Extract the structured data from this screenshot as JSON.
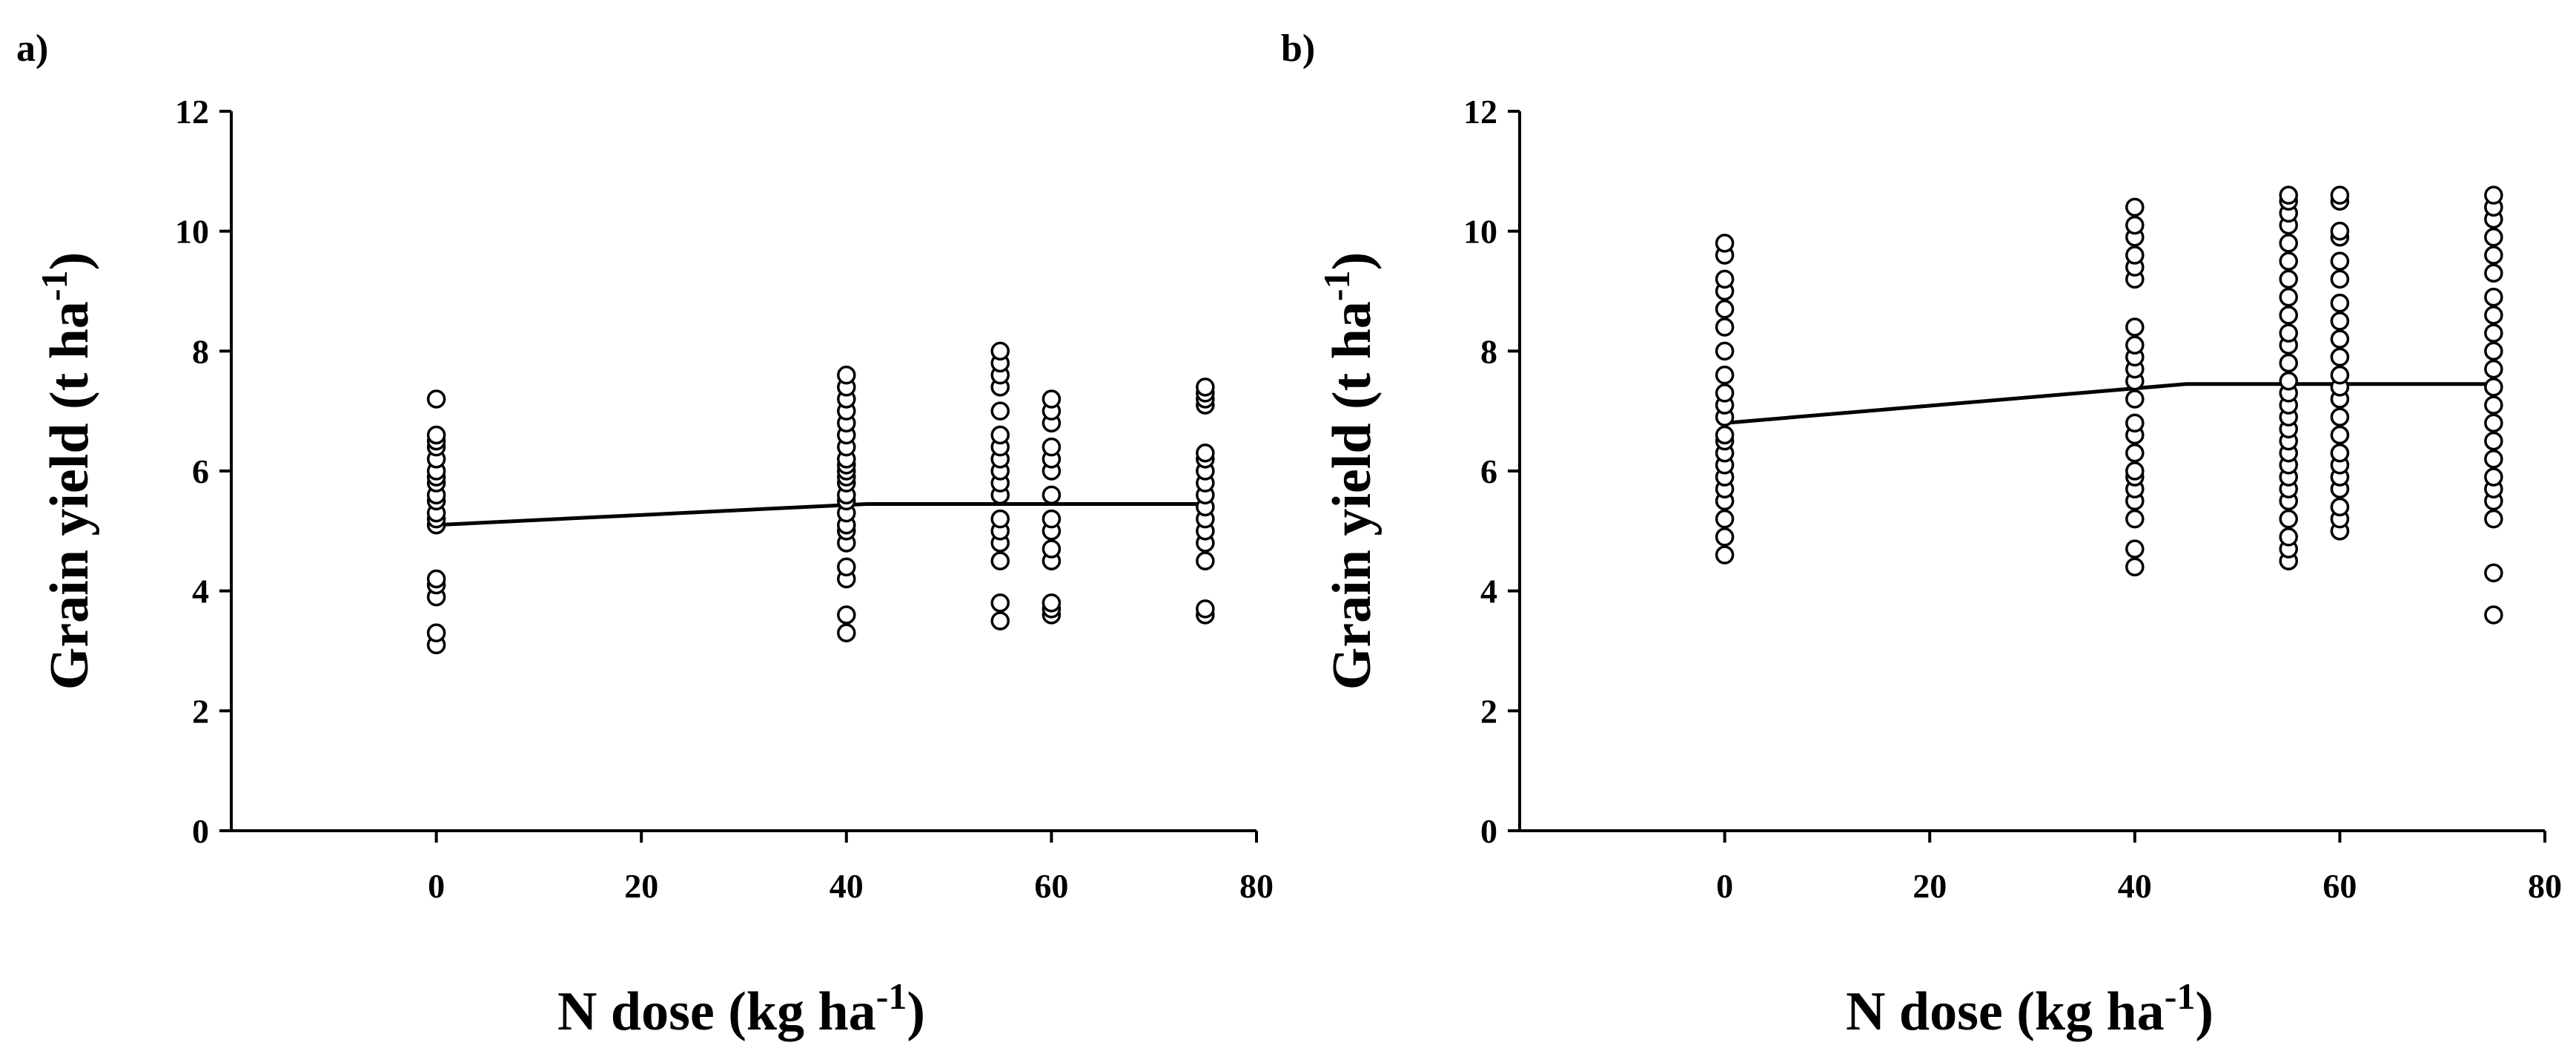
{
  "chart_data": [
    {
      "type": "scatter",
      "panel_label": "a)",
      "xlabel": "N dose (kg ha",
      "xlabel_sup": "-1",
      "xlabel_end": ")",
      "ylabel": "Grain yield (t ha",
      "ylabel_sup": "-1",
      "ylabel_end": ")",
      "xlim": [
        -20,
        80
      ],
      "ylim": [
        0,
        12
      ],
      "xticks": [
        "0",
        "20",
        "40",
        "60",
        "80"
      ],
      "yticks": [
        "0",
        "2",
        "4",
        "6",
        "8",
        "10",
        "12"
      ],
      "grid": false,
      "legend": "none",
      "points": [
        {
          "x": 0,
          "y": [
            3.1,
            3.3,
            3.9,
            4.1,
            4.2,
            5.1,
            5.2,
            5.3,
            5.5,
            5.6,
            5.8,
            5.9,
            6.0,
            6.2,
            6.4,
            6.5,
            6.6,
            7.2
          ]
        },
        {
          "x": 40,
          "y": [
            3.3,
            3.6,
            4.2,
            4.4,
            4.8,
            5.0,
            5.1,
            5.3,
            5.5,
            5.6,
            5.8,
            5.9,
            6.0,
            6.1,
            6.2,
            6.4,
            6.6,
            6.8,
            7.0,
            7.2,
            7.4,
            7.6
          ]
        },
        {
          "x": 55,
          "y": [
            3.5,
            3.8,
            4.5,
            4.8,
            5.0,
            5.2,
            5.6,
            5.8,
            6.0,
            6.2,
            6.4,
            6.6,
            7.0,
            7.4,
            7.6,
            7.8,
            8.0
          ]
        },
        {
          "x": 60,
          "y": [
            3.6,
            3.7,
            3.8,
            4.5,
            4.7,
            5.0,
            5.2,
            5.6,
            6.0,
            6.2,
            6.4,
            6.8,
            7.0,
            7.2
          ]
        },
        {
          "x": 75,
          "y": [
            3.6,
            3.7,
            4.5,
            4.8,
            5.0,
            5.2,
            5.4,
            5.6,
            5.8,
            6.0,
            6.2,
            6.3,
            7.1,
            7.2,
            7.3,
            7.4
          ]
        }
      ],
      "fit_line": {
        "x": [
          0,
          42,
          75
        ],
        "y": [
          5.1,
          5.45,
          5.45
        ]
      }
    },
    {
      "type": "scatter",
      "panel_label": "b)",
      "xlabel": "N dose (kg ha",
      "xlabel_sup": "-1",
      "xlabel_end": ")",
      "ylabel": "Grain yield (t ha",
      "ylabel_sup": "-1",
      "ylabel_end": ")",
      "xlim": [
        -20,
        80
      ],
      "ylim": [
        0,
        12
      ],
      "xticks": [
        "0",
        "20",
        "40",
        "60",
        "80"
      ],
      "yticks": [
        "0",
        "2",
        "4",
        "6",
        "8",
        "10",
        "12"
      ],
      "grid": false,
      "legend": "none",
      "points": [
        {
          "x": 0,
          "y": [
            4.6,
            4.9,
            5.2,
            5.5,
            5.7,
            5.9,
            6.1,
            6.3,
            6.5,
            6.6,
            6.9,
            7.1,
            7.3,
            7.6,
            8.0,
            8.4,
            8.7,
            9.0,
            9.2,
            9.6,
            9.8
          ]
        },
        {
          "x": 40,
          "y": [
            4.4,
            4.7,
            5.2,
            5.5,
            5.7,
            5.9,
            6.0,
            6.3,
            6.6,
            6.8,
            7.2,
            7.5,
            7.7,
            7.9,
            8.1,
            8.4,
            9.2,
            9.4,
            9.6,
            9.9,
            10.1,
            10.4
          ]
        },
        {
          "x": 55,
          "y": [
            4.5,
            4.7,
            4.9,
            5.2,
            5.5,
            5.7,
            5.9,
            6.1,
            6.3,
            6.5,
            6.7,
            6.9,
            7.1,
            7.3,
            7.5,
            7.8,
            8.1,
            8.3,
            8.6,
            8.9,
            9.2,
            9.5,
            9.8,
            10.1,
            10.3,
            10.5,
            10.6
          ]
        },
        {
          "x": 60,
          "y": [
            5.0,
            5.2,
            5.4,
            5.7,
            5.9,
            6.1,
            6.3,
            6.6,
            6.9,
            7.2,
            7.4,
            7.6,
            7.9,
            8.2,
            8.5,
            8.8,
            9.2,
            9.5,
            9.9,
            10.0,
            10.5,
            10.6
          ]
        },
        {
          "x": 75,
          "y": [
            3.6,
            4.3,
            5.2,
            5.5,
            5.7,
            5.9,
            6.2,
            6.5,
            6.8,
            7.1,
            7.4,
            7.7,
            8.0,
            8.3,
            8.6,
            8.9,
            9.3,
            9.6,
            9.9,
            10.2,
            10.4,
            10.6
          ]
        }
      ],
      "fit_line": {
        "x": [
          0,
          45,
          75
        ],
        "y": [
          6.8,
          7.45,
          7.45
        ]
      }
    }
  ]
}
